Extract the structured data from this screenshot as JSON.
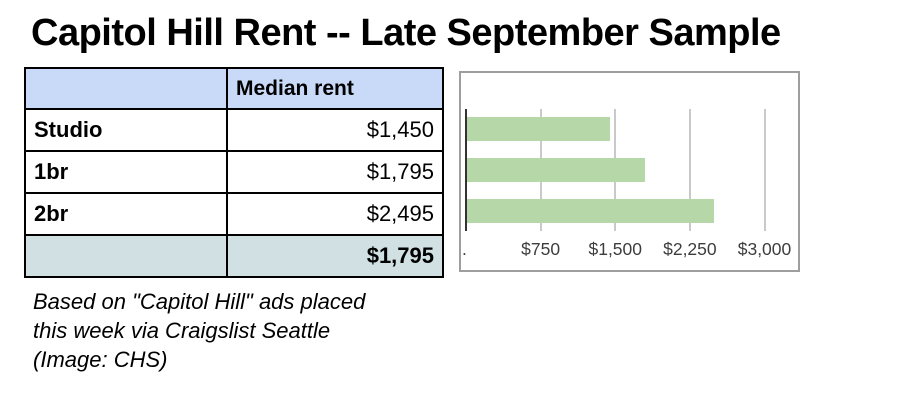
{
  "title": "Capitol Hill Rent -- Late September Sample",
  "table": {
    "header": {
      "col1": "",
      "col2": "Median rent"
    },
    "rows": [
      {
        "label": "Studio",
        "value": "$1,450"
      },
      {
        "label": "1br",
        "value": "$1,795"
      },
      {
        "label": "2br",
        "value": "$2,495"
      }
    ],
    "summary": {
      "label": "",
      "value": "$1,795"
    },
    "header_bg": "#c9daf8",
    "summary_bg": "#d0e0e3",
    "border_color": "#000000"
  },
  "caption": "Based on \"Capitol Hill\" ads placed\nthis week via Craigslist Seattle\n(Image: CHS)",
  "chart_data": {
    "type": "bar",
    "orientation": "horizontal",
    "title": "",
    "xlabel": "",
    "ylabel": "",
    "categories": [
      "Studio",
      "1br",
      "2br"
    ],
    "values": [
      1450,
      1795,
      2495
    ],
    "xlim": [
      0,
      3350
    ],
    "tick_values": [
      750,
      1500,
      2250,
      3000
    ],
    "tick_labels": [
      "$750",
      "$1,500",
      "$2,250",
      "$3,000"
    ],
    "origin_tick_label": ".",
    "grid": true,
    "legend": false,
    "bar_color": "#b6d7a8",
    "gridline_color": "#c9c9c9",
    "axis_color": "#333333",
    "border_color": "#9e9e9e",
    "tick_label_color": "#3d3d3d"
  }
}
